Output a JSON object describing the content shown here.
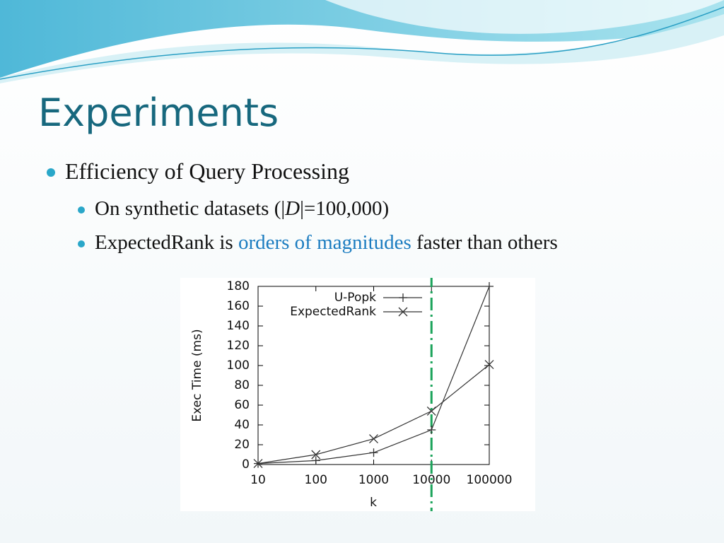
{
  "title": "Experiments",
  "bullets": [
    {
      "parts": [
        "Efficiency of Query Processing"
      ]
    },
    {
      "parts": [
        "On synthetic datasets (|",
        "D",
        "|=100,000)"
      ]
    },
    {
      "parts": [
        "ExpectedRank is ",
        "orders of magnitudes",
        " faster than others"
      ]
    }
  ],
  "chart_data": {
    "type": "line",
    "xlabel": "k",
    "ylabel": "Exec Time (ms)",
    "xlog": true,
    "xlim": [
      10,
      100000
    ],
    "xticks": [
      10,
      100,
      1000,
      10000,
      100000
    ],
    "ylim": [
      0,
      180
    ],
    "yticks": [
      0,
      20,
      40,
      60,
      80,
      100,
      120,
      140,
      160,
      180
    ],
    "legend": "upper right",
    "x": [
      10,
      100,
      1000,
      10000,
      100000
    ],
    "series": [
      {
        "name": "U-Popk",
        "color": "#333333",
        "marker": "+",
        "values": [
          1,
          4,
          12,
          35,
          180
        ]
      },
      {
        "name": "ExpectedRank",
        "color": "#333333",
        "marker": "x",
        "values": [
          1,
          10,
          26,
          54,
          101
        ]
      }
    ],
    "vline": {
      "x": 10000,
      "color": "#1aa35a"
    }
  }
}
